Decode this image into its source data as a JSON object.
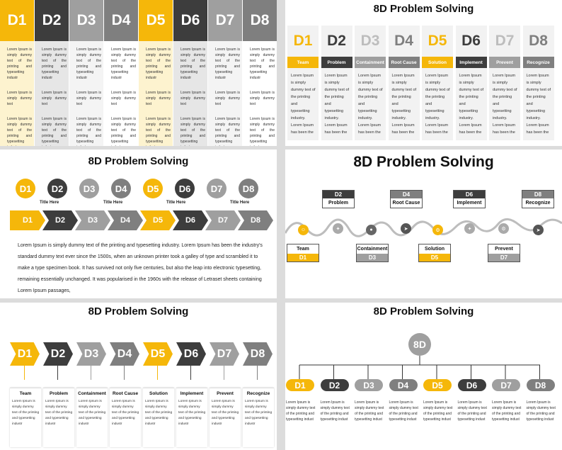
{
  "colors": {
    "yellow": "#f5b70a",
    "dark": "#3d3d3d",
    "mid": "#7f7f7f",
    "light": "#9f9f9f",
    "paleYellow": "#fdf3cf",
    "paleGray": "#e6e6e6"
  },
  "steps": [
    "D1",
    "D2",
    "D3",
    "D4",
    "D5",
    "D6",
    "D7",
    "D8"
  ],
  "names": [
    "Team",
    "Problem",
    "Containment",
    "Root Cause",
    "Solution",
    "Implement",
    "Prevent",
    "Recognize"
  ],
  "title": "8D Problem Solving",
  "s1": {
    "p1": "Lorem Ipsum is simply dummy text of the printing and typesetting industr",
    "p2": "Lorem Ipsum is simply dummy text",
    "p3": "Lorem Ipsum is simply dummy text of the printing and typesetting industr",
    "p4": "Lorem Ipsum is simply dummy text"
  },
  "s2": {
    "body": "Lorem Ipsum is simply dummy text of the printing and typesetting industry. Lorem Ipsum has been the"
  },
  "s3": {
    "title_here": "Title Here",
    "paragraph": "Lorem Ipsum is simply dummy text of the printing and typesetting industry. Lorem Ipsum has been the industry's standard dummy text ever since the 1500s, when an unknown printer took a galley of type and scrambled it to make a type specimen book. It has survived not only five centuries, but also the leap into electronic typesetting, remaining essentially unchanged. It was popularised in the 1960s with the release of Letraset sheets containing Lorem Ipsum passages,"
  },
  "s5": {
    "body": "Lorem Ipsum is simply dummy text of the printing and typesetting industr"
  },
  "s6": {
    "center": "8D",
    "body": "Lorem Ipsum is simply dummy text of the printing and typesetting indust"
  }
}
